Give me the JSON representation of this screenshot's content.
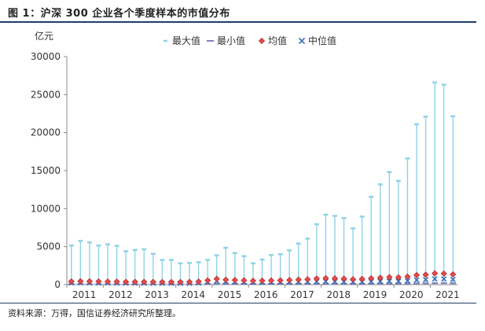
{
  "figure": {
    "title": "图 1：沪深 300 企业各个季度样本的市值分布",
    "source": "资料来源：万得，国信证券经济研究所整理。"
  },
  "colors": {
    "max": "#8fd3e6",
    "min": "#7f7fc0",
    "mean": "#e84a4a",
    "median": "#3a6fb7",
    "axis": "#888888",
    "rule": "#1f3e68"
  },
  "chart_data": {
    "type": "scatter",
    "ylabel": "亿元",
    "ylim": [
      0,
      30000
    ],
    "yticks": [
      0,
      5000,
      10000,
      15000,
      20000,
      25000,
      30000
    ],
    "xtick_labels": [
      "2011",
      "2012",
      "2013",
      "2014",
      "2015",
      "2016",
      "2017",
      "2018",
      "2019",
      "2020",
      "2021"
    ],
    "legend_position": "top",
    "series": [
      {
        "name": "最大值",
        "marker": "short-dash",
        "values": [
          5150,
          5750,
          5550,
          5150,
          5300,
          5100,
          4400,
          4550,
          4650,
          4050,
          3250,
          3250,
          2800,
          2850,
          2950,
          3250,
          3850,
          4850,
          4150,
          3750,
          2800,
          3300,
          3900,
          4000,
          4500,
          5400,
          6050,
          7950,
          9200,
          9050,
          8750,
          7400,
          8950,
          11550,
          13200,
          14800,
          13650,
          16600,
          21100,
          22100,
          26600,
          26300,
          22150
        ]
      },
      {
        "name": "最小值",
        "marker": "long-dash",
        "values": [
          80,
          80,
          70,
          70,
          70,
          70,
          60,
          60,
          60,
          60,
          60,
          60,
          60,
          60,
          70,
          100,
          120,
          130,
          120,
          110,
          100,
          100,
          110,
          110,
          120,
          120,
          120,
          110,
          110,
          110,
          100,
          100,
          110,
          110,
          120,
          130,
          140,
          150,
          160,
          170,
          190,
          190,
          180
        ]
      },
      {
        "name": "均值",
        "marker": "diamond",
        "values": [
          420,
          440,
          430,
          410,
          400,
          390,
          360,
          360,
          360,
          350,
          330,
          330,
          330,
          350,
          400,
          550,
          760,
          640,
          600,
          560,
          500,
          520,
          540,
          560,
          600,
          650,
          700,
          800,
          850,
          820,
          780,
          700,
          750,
          830,
          900,
          980,
          950,
          1050,
          1250,
          1300,
          1480,
          1450,
          1350
        ]
      },
      {
        "name": "中位值",
        "marker": "x",
        "values": [
          230,
          240,
          230,
          220,
          210,
          200,
          190,
          190,
          190,
          180,
          170,
          170,
          170,
          180,
          210,
          330,
          470,
          390,
          360,
          330,
          290,
          300,
          310,
          320,
          330,
          350,
          370,
          400,
          420,
          400,
          380,
          340,
          360,
          400,
          430,
          460,
          450,
          500,
          620,
          650,
          760,
          740,
          680
        ]
      }
    ]
  }
}
